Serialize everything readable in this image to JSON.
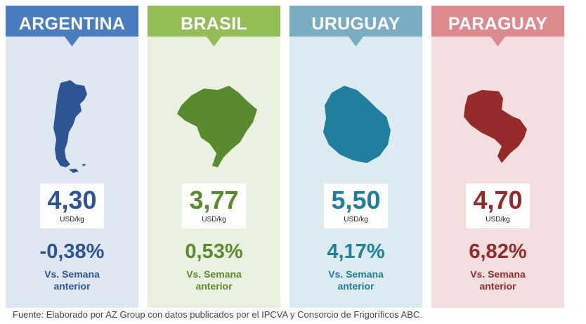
{
  "cards": [
    {
      "country": "ARGENTINA",
      "price": "4,30",
      "unit": "USD/kg",
      "change": "-0,38%",
      "vs_line1": "Vs. Semana",
      "vs_line2": "anterior",
      "map_icon": "argentina-map-icon",
      "colors": {
        "bg": "#dfe7f3",
        "banner": "#4a7cc0",
        "accent": "#2d5596"
      }
    },
    {
      "country": "BRASIL",
      "price": "3,77",
      "unit": "USD/kg",
      "change": "0,53%",
      "vs_line1": "Vs. Semana",
      "vs_line2": "anterior",
      "map_icon": "brazil-map-icon",
      "colors": {
        "bg": "#ebf1e0",
        "banner": "#93bd57",
        "accent": "#5a8a2e"
      }
    },
    {
      "country": "URUGUAY",
      "price": "5,50",
      "unit": "USD/kg",
      "change": "4,17%",
      "vs_line1": "Vs. Semana",
      "vs_line2": "anterior",
      "map_icon": "uruguay-map-icon",
      "colors": {
        "bg": "#dceaf1",
        "banner": "#7aacc2",
        "accent": "#1f7f9c"
      }
    },
    {
      "country": "PARAGUAY",
      "price": "4,70",
      "unit": "USD/kg",
      "change": "6,82%",
      "vs_line1": "Vs. Semana",
      "vs_line2": "anterior",
      "map_icon": "paraguay-map-icon",
      "colors": {
        "bg": "#f4dfe0",
        "banner": "#dc8a8e",
        "accent": "#962a2a"
      }
    }
  ],
  "footer": "Fuente: Elaborado por AZ Group con datos publicados por el IPCVA y Consorcio de Frigoríficos ABC."
}
